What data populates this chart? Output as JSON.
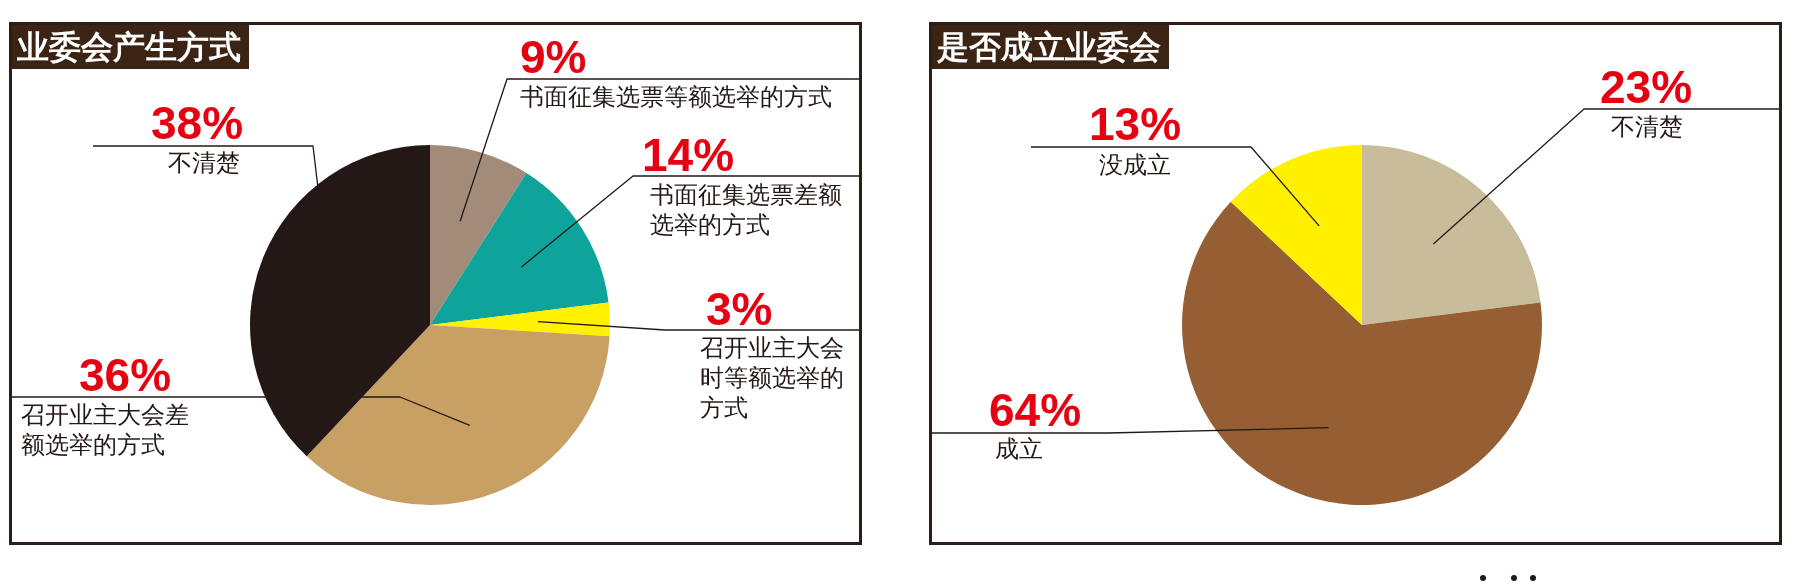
{
  "chart_data": [
    {
      "type": "pie",
      "title": "业委会产生方式",
      "categories": [
        "书面征集选票等额选举的方式",
        "书面征集选票差额选举的方式",
        "召开业主大会时等额选举的方式",
        "召开业主大会差额选举的方式",
        "不清楚"
      ],
      "values": [
        9,
        14,
        3,
        36,
        38
      ],
      "colors": [
        "#a38b79",
        "#0ea39b",
        "#fff100",
        "#c9a063",
        "#231816"
      ],
      "value_labels": [
        "9%",
        "14%",
        "3%",
        "36%",
        "38%"
      ]
    },
    {
      "type": "pie",
      "title": "是否成立业委会",
      "categories": [
        "不清楚",
        "成立",
        "没成立"
      ],
      "values": [
        23,
        64,
        13
      ],
      "colors": [
        "#c9bc9b",
        "#965f33",
        "#fff000"
      ],
      "value_labels": [
        "23%",
        "64%",
        "13%"
      ]
    }
  ]
}
